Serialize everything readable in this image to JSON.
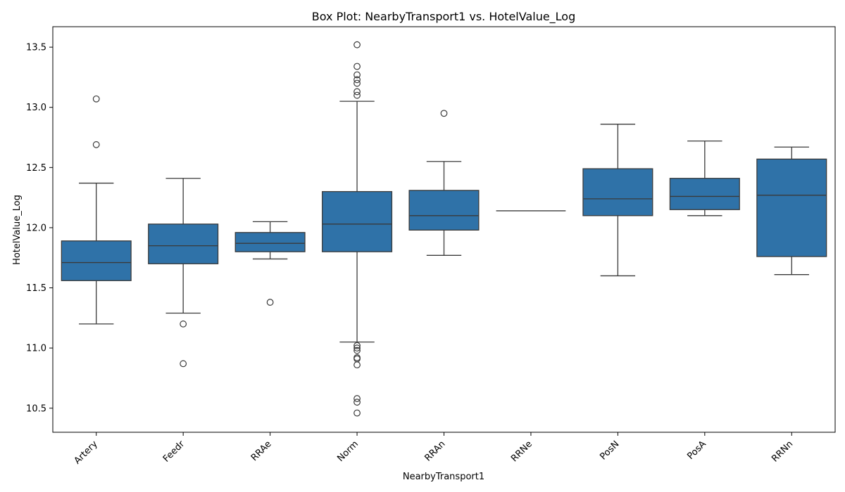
{
  "chart_data": {
    "type": "box",
    "title": "Box Plot: NearbyTransport1 vs. HotelValue_Log",
    "xlabel": "NearbyTransport1",
    "ylabel": "HotelValue_Log",
    "ylim": [
      10.3,
      13.67
    ],
    "yticks": [
      10.5,
      11.0,
      11.5,
      12.0,
      12.5,
      13.0,
      13.5
    ],
    "ytick_labels": [
      "10.5",
      "11.0",
      "11.5",
      "12.0",
      "12.5",
      "13.0",
      "13.5"
    ],
    "color": "#2f72a8",
    "grid": false,
    "categories": [
      {
        "name": "Artery",
        "whisker_low": 11.2,
        "q1": 11.56,
        "median": 11.71,
        "q3": 11.89,
        "whisker_high": 12.37,
        "outliers": [
          12.69,
          13.07
        ]
      },
      {
        "name": "Feedr",
        "whisker_low": 11.29,
        "q1": 11.7,
        "median": 11.85,
        "q3": 12.03,
        "whisker_high": 12.41,
        "outliers": [
          11.2,
          10.87
        ]
      },
      {
        "name": "RRAe",
        "whisker_low": 11.74,
        "q1": 11.8,
        "median": 11.87,
        "q3": 11.96,
        "whisker_high": 12.05,
        "outliers": [
          11.38
        ]
      },
      {
        "name": "Norm",
        "whisker_low": 11.05,
        "q1": 11.8,
        "median": 12.03,
        "q3": 12.3,
        "whisker_high": 13.05,
        "outliers": [
          11.02,
          11.0,
          10.98,
          10.92,
          10.91,
          10.86,
          10.58,
          10.55,
          10.46,
          13.1,
          13.13,
          13.2,
          13.23,
          13.27,
          13.34,
          13.52
        ]
      },
      {
        "name": "RRAn",
        "whisker_low": 11.77,
        "q1": 11.98,
        "median": 12.1,
        "q3": 12.31,
        "whisker_high": 12.55,
        "outliers": [
          12.95
        ]
      },
      {
        "name": "RRNe",
        "whisker_low": 12.14,
        "q1": 12.14,
        "median": 12.14,
        "q3": 12.14,
        "whisker_high": 12.14,
        "outliers": []
      },
      {
        "name": "PosN",
        "whisker_low": 11.6,
        "q1": 12.1,
        "median": 12.24,
        "q3": 12.49,
        "whisker_high": 12.86,
        "outliers": []
      },
      {
        "name": "PosA",
        "whisker_low": 12.1,
        "q1": 12.15,
        "median": 12.26,
        "q3": 12.41,
        "whisker_high": 12.72,
        "outliers": []
      },
      {
        "name": "RRNn",
        "whisker_low": 11.61,
        "q1": 11.76,
        "median": 12.27,
        "q3": 12.57,
        "whisker_high": 12.67,
        "outliers": []
      }
    ]
  }
}
